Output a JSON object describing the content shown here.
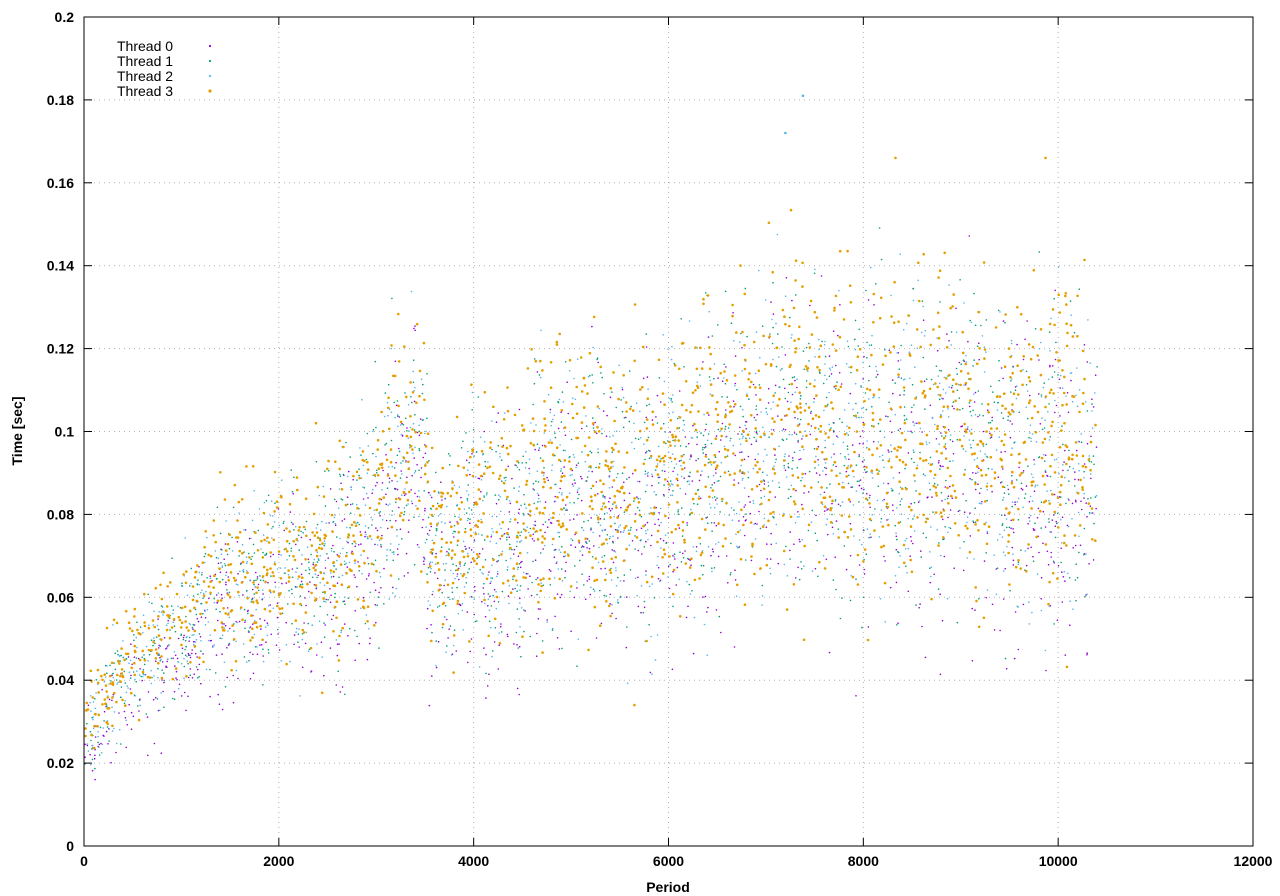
{
  "chart_data": {
    "type": "scatter",
    "xlabel": "Period",
    "ylabel": "Time [sec]",
    "xlim": [
      0,
      12000
    ],
    "ylim": [
      0,
      0.2
    ],
    "x_ticks": [
      "0",
      "2000",
      "4000",
      "6000",
      "8000",
      "10000",
      "12000"
    ],
    "y_ticks": [
      "0",
      "0.02",
      "0.04",
      "0.06",
      "0.08",
      "0.1",
      "0.12",
      "0.14",
      "0.16",
      "0.18",
      "0.2"
    ],
    "grid": true,
    "legend_position": "top-left",
    "x_range_of_data": [
      0,
      10400
    ],
    "series": [
      {
        "name": "Thread 0",
        "color": "#9400d3",
        "marker": "dot"
      },
      {
        "name": "Thread 1",
        "color": "#009e73",
        "marker": "dot"
      },
      {
        "name": "Thread 2",
        "color": "#56b4e9",
        "marker": "dot"
      },
      {
        "name": "Thread 3",
        "color": "#e69f00",
        "marker": "dot"
      }
    ],
    "trend": {
      "x": [
        0,
        200,
        500,
        1000,
        1500,
        2000,
        2500,
        3000,
        3400,
        3600,
        4000,
        4500,
        5000,
        5500,
        6000,
        6500,
        7000,
        7500,
        8000,
        8500,
        9000,
        9500,
        10000,
        10400
      ],
      "y_center": [
        0.025,
        0.034,
        0.042,
        0.052,
        0.063,
        0.065,
        0.068,
        0.08,
        0.1,
        0.072,
        0.077,
        0.075,
        0.09,
        0.083,
        0.087,
        0.095,
        0.097,
        0.1,
        0.093,
        0.095,
        0.1,
        0.09,
        0.095,
        0.09
      ],
      "y_spread": [
        0.006,
        0.008,
        0.009,
        0.01,
        0.014,
        0.015,
        0.015,
        0.018,
        0.02,
        0.017,
        0.02,
        0.02,
        0.022,
        0.022,
        0.022,
        0.024,
        0.026,
        0.026,
        0.026,
        0.026,
        0.027,
        0.026,
        0.026,
        0.025
      ]
    },
    "notable_points": [
      {
        "x": 7380,
        "y": 0.181,
        "series": "Thread 2"
      },
      {
        "x": 7200,
        "y": 0.172,
        "series": "Thread 2"
      },
      {
        "x": 8330,
        "y": 0.166,
        "series": "Thread 3"
      },
      {
        "x": 9870,
        "y": 0.166,
        "series": "Thread 3"
      },
      {
        "x": 5650,
        "y": 0.034,
        "series": "Thread 3"
      }
    ]
  }
}
